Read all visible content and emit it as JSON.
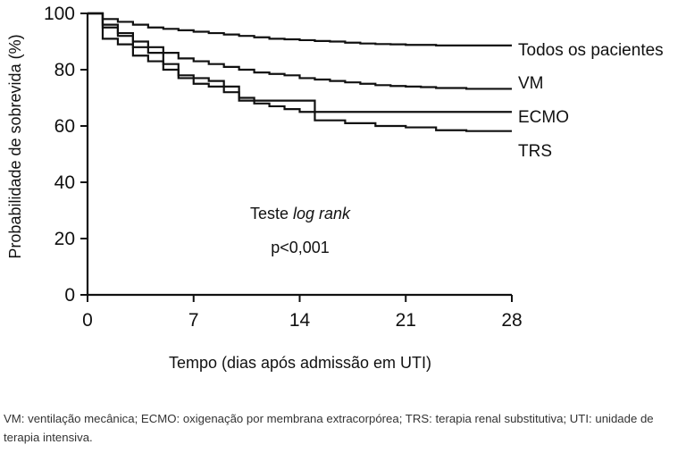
{
  "chart_data": {
    "type": "line",
    "subtype": "kaplan-meier-step",
    "title": "",
    "xlabel": "Tempo (dias após admissão em UTI)",
    "ylabel": "Probabilidade de sobrevida (%)",
    "xlim": [
      0,
      28
    ],
    "ylim": [
      0,
      100
    ],
    "xticks": [
      "0",
      "7",
      "14",
      "21",
      "28"
    ],
    "yticks": [
      "0",
      "20",
      "40",
      "60",
      "80",
      "100"
    ],
    "grid": false,
    "legend": "labels at line ends (right)",
    "line_color": "#111111",
    "series": [
      {
        "name": "Todos os pacientes",
        "x": [
          0,
          1,
          2,
          3,
          4,
          5,
          6,
          7,
          8,
          9,
          10,
          11,
          12,
          13,
          14,
          15,
          16,
          17,
          18,
          19,
          20,
          21,
          23,
          28
        ],
        "y": [
          100,
          98,
          97,
          96,
          95,
          94.5,
          94,
          93.5,
          93,
          92.5,
          92,
          91.5,
          91,
          90.8,
          90.5,
          90.2,
          90,
          89.6,
          89.3,
          89.1,
          89,
          88.8,
          88.6,
          88.6
        ]
      },
      {
        "name": "VM",
        "x": [
          0,
          1,
          2,
          3,
          4,
          5,
          6,
          7,
          8,
          9,
          10,
          11,
          12,
          13,
          14,
          15,
          16,
          17,
          18,
          19,
          20,
          21,
          22,
          23,
          25,
          28
        ],
        "y": [
          100,
          96,
          92,
          90,
          88,
          86,
          84,
          83,
          82,
          81,
          80,
          79,
          78.5,
          78,
          77,
          76.5,
          76,
          75.5,
          75,
          74.5,
          74.2,
          74,
          73.8,
          73.5,
          73.2,
          73.2
        ]
      },
      {
        "name": "ECMO",
        "x": [
          0,
          1,
          2,
          3,
          4,
          5,
          6,
          7,
          8,
          9,
          10,
          11,
          14,
          15,
          16,
          28
        ],
        "y": [
          100,
          95,
          93,
          88,
          86,
          82,
          78,
          77,
          76,
          74,
          70,
          69,
          69,
          65,
          65,
          65
        ]
      },
      {
        "name": "TRS",
        "x": [
          0,
          1,
          2,
          3,
          4,
          5,
          6,
          7,
          8,
          9,
          10,
          11,
          12,
          13,
          14,
          15,
          17,
          19,
          21,
          23,
          25,
          28
        ],
        "y": [
          100,
          91,
          89,
          85,
          83,
          80,
          77,
          75,
          74,
          72,
          69,
          68,
          67,
          66,
          65,
          62,
          61,
          60,
          59.5,
          58.5,
          58.2,
          58.2
        ]
      }
    ],
    "annotations": {
      "test_prefix": "Teste ",
      "test_italic": "log rank",
      "p_value": "p<0,001"
    }
  },
  "caption": "VM: ventilação mecânica; ECMO: oxigenação por membrana extracorpórea; TRS: terapia renal substitutiva; UTI: unidade de terapia intensiva."
}
